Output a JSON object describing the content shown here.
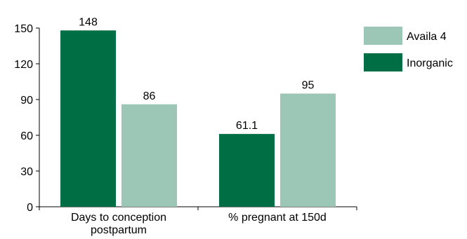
{
  "chart_data": {
    "type": "bar",
    "categories": [
      "Days to conception\npostpartum",
      "% pregnant at 150d"
    ],
    "series": [
      {
        "name": "Inorganic",
        "values": [
          148,
          61.1
        ],
        "color": "#006e45"
      },
      {
        "name": "Availa 4",
        "values": [
          86,
          95
        ],
        "color": "#9cc6b6"
      }
    ],
    "data_labels": [
      [
        "148",
        "61.1"
      ],
      [
        "86",
        "95"
      ]
    ],
    "legend_order": [
      1,
      0
    ],
    "ylim": [
      0,
      150
    ],
    "yticks": [
      0,
      30,
      60,
      90,
      120,
      150
    ],
    "grid": false,
    "legend_position": "top-right",
    "title": "",
    "xlabel": "",
    "ylabel": ""
  }
}
